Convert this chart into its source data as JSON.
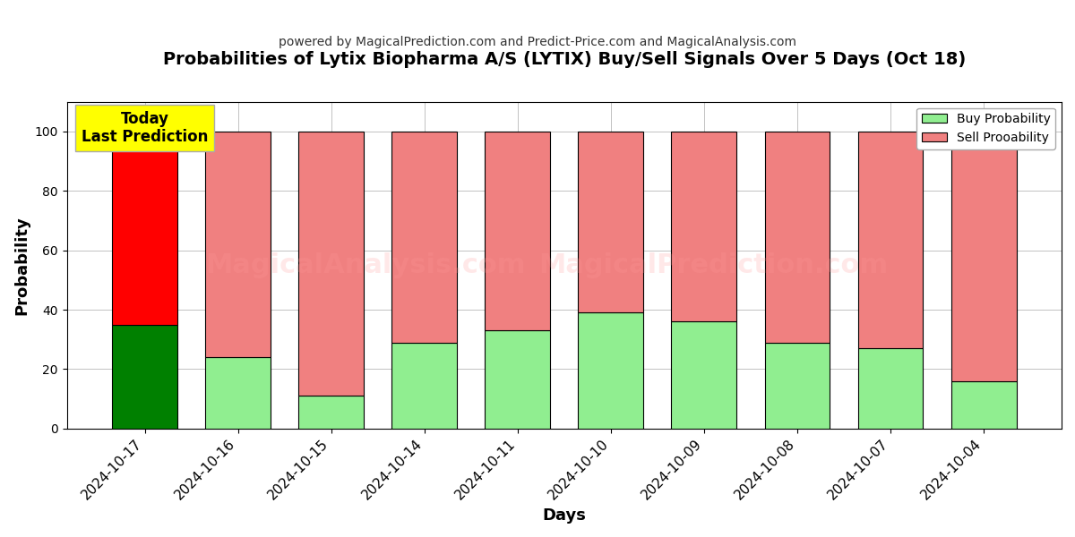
{
  "title": "Probabilities of Lytix Biopharma A/S (LYTIX) Buy/Sell Signals Over 5 Days (Oct 18)",
  "subtitle": "powered by MagicalPrediction.com and Predict-Price.com and MagicalAnalysis.com",
  "xlabel": "Days",
  "ylabel": "Probability",
  "dates": [
    "2024-10-17",
    "2024-10-16",
    "2024-10-15",
    "2024-10-14",
    "2024-10-11",
    "2024-10-10",
    "2024-10-09",
    "2024-10-08",
    "2024-10-07",
    "2024-10-04"
  ],
  "buy_probs": [
    35,
    24,
    11,
    29,
    33,
    39,
    36,
    29,
    27,
    16
  ],
  "sell_probs": [
    65,
    76,
    89,
    71,
    67,
    61,
    64,
    71,
    73,
    84
  ],
  "today_buy_color": "#008000",
  "today_sell_color": "#FF0000",
  "other_buy_color": "#90EE90",
  "other_sell_color": "#F08080",
  "bar_edge_color": "#000000",
  "ylim": [
    0,
    110
  ],
  "dashed_line_y": 110,
  "watermark_text1": "MagicalAnalysis.com",
  "watermark_text2": "MagicalPrediction.com",
  "background_color": "#ffffff",
  "grid_color": "#aaaaaa",
  "today_label_bg": "#FFFF00",
  "today_label_text": "Today\nLast Prediction",
  "legend_buy_label": "Buy Probability",
  "legend_sell_label": "Sell Prooability",
  "watermark_color": "#FF9999",
  "watermark_alpha": 0.22
}
